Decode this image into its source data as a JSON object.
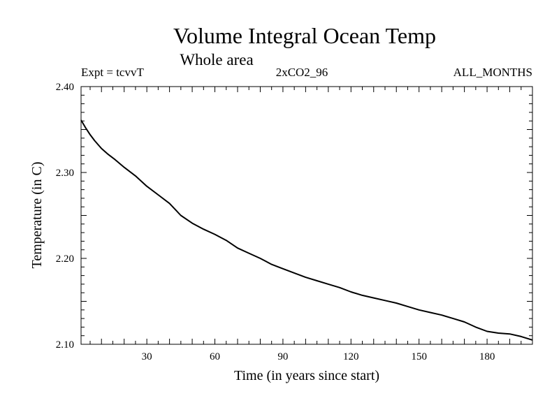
{
  "chart_data": {
    "type": "line",
    "title": "Volume Integral Ocean Temp",
    "subtitle": "Whole area",
    "annotations": {
      "left": "Expt = tcvvT",
      "center": "2xCO2_96",
      "right": "ALL_MONTHS"
    },
    "xlabel": "Time (in years since start)",
    "ylabel": "Temperature (in C)",
    "xlim": [
      1,
      200
    ],
    "ylim": [
      2.1,
      2.4
    ],
    "x_ticks": [
      30,
      60,
      90,
      120,
      150,
      180
    ],
    "y_ticks": [
      "2.10",
      "2.20",
      "2.30",
      "2.40"
    ],
    "grid": false,
    "series": [
      {
        "color": "#000000",
        "x": [
          1,
          3,
          5,
          7,
          10,
          13,
          16,
          20,
          25,
          30,
          35,
          40,
          45,
          50,
          55,
          60,
          65,
          70,
          75,
          80,
          85,
          90,
          95,
          100,
          105,
          110,
          115,
          120,
          125,
          130,
          135,
          140,
          145,
          150,
          155,
          160,
          165,
          170,
          175,
          180,
          185,
          190,
          195,
          200
        ],
        "y": [
          2.361,
          2.352,
          2.344,
          2.337,
          2.328,
          2.321,
          2.315,
          2.306,
          2.296,
          2.284,
          2.274,
          2.264,
          2.25,
          2.241,
          2.234,
          2.228,
          2.221,
          2.212,
          2.206,
          2.2,
          2.193,
          2.188,
          2.183,
          2.178,
          2.174,
          2.17,
          2.166,
          2.161,
          2.157,
          2.154,
          2.151,
          2.148,
          2.144,
          2.14,
          2.137,
          2.134,
          2.13,
          2.126,
          2.12,
          2.115,
          2.113,
          2.112,
          2.109,
          2.105
        ]
      }
    ]
  }
}
